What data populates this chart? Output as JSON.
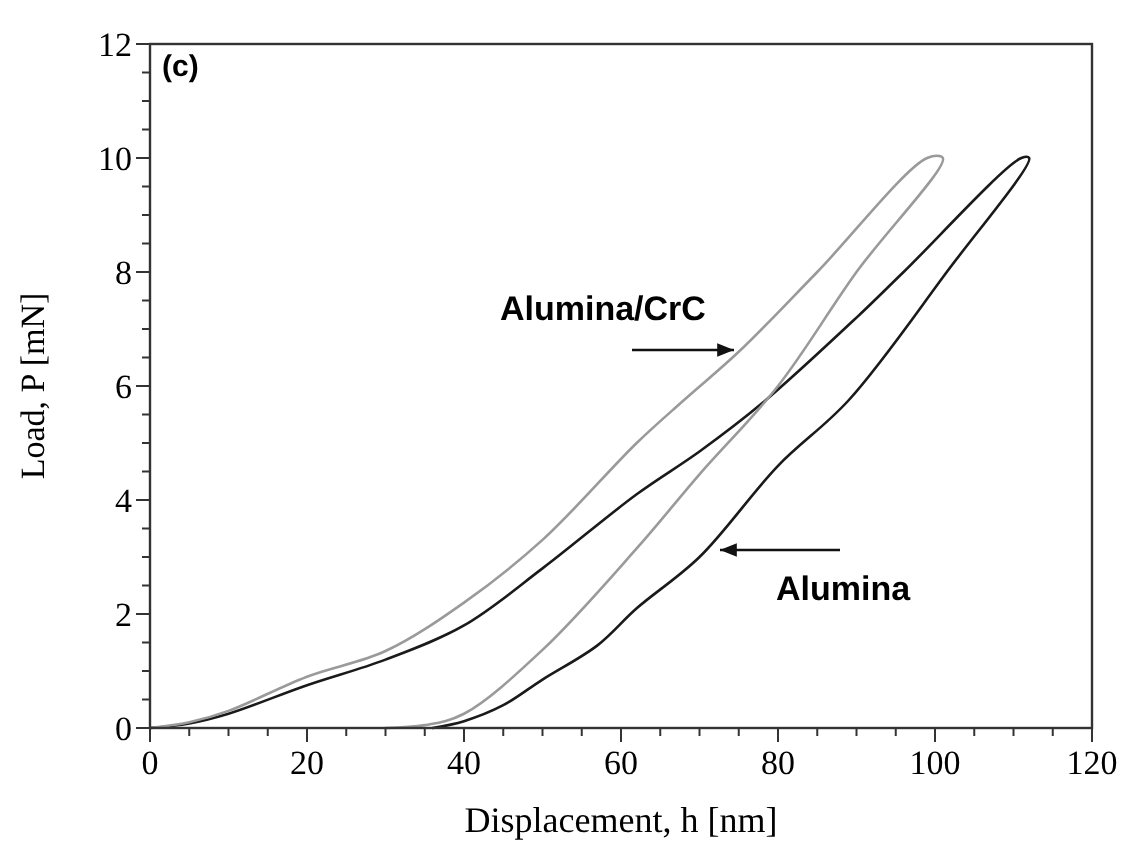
{
  "chart_data": {
    "type": "line",
    "xlabel": "Displacement, h [nm]",
    "ylabel": "Load, P [mN]",
    "xlim": [
      0,
      120
    ],
    "ylim": [
      0,
      12
    ],
    "xticks": [
      0,
      {
        "value": 5,
        "label": null
      },
      20,
      {
        "value": 10,
        "label": null
      },
      {
        "value": 15,
        "label": null
      },
      {
        "value": 25,
        "label": null
      },
      {
        "value": 30,
        "label": null
      },
      {
        "value": 35,
        "label": null
      },
      40,
      {
        "value": 45,
        "label": null
      },
      {
        "value": 50,
        "label": null
      },
      {
        "value": 55,
        "label": null
      },
      60,
      {
        "value": 65,
        "label": null
      },
      {
        "value": 70,
        "label": null
      },
      {
        "value": 75,
        "label": null
      },
      80,
      {
        "value": 85,
        "label": null
      },
      {
        "value": 90,
        "label": null
      },
      {
        "value": 95,
        "label": null
      },
      100,
      {
        "value": 105,
        "label": null
      },
      {
        "value": 110,
        "label": null
      },
      {
        "value": 115,
        "label": null
      },
      120
    ],
    "yticks": [
      0,
      {
        "value": 0.5,
        "label": null
      },
      {
        "value": 1,
        "label": null
      },
      {
        "value": 1.5,
        "label": null
      },
      2,
      {
        "value": 2.5,
        "label": null
      },
      {
        "value": 3,
        "label": null
      },
      {
        "value": 3.5,
        "label": null
      },
      4,
      {
        "value": 4.5,
        "label": null
      },
      {
        "value": 5,
        "label": null
      },
      {
        "value": 5.5,
        "label": null
      },
      6,
      {
        "value": 6.5,
        "label": null
      },
      {
        "value": 7,
        "label": null
      },
      {
        "value": 7.5,
        "label": null
      },
      8,
      {
        "value": 8.5,
        "label": null
      },
      {
        "value": 9,
        "label": null
      },
      {
        "value": 9.5,
        "label": null
      },
      10,
      {
        "value": 10.5,
        "label": null
      },
      {
        "value": 11,
        "label": null
      },
      {
        "value": 11.5,
        "label": null
      },
      12
    ],
    "grid": false,
    "marker": "none",
    "line_style": "solid",
    "series": [
      {
        "color": "#1a1a1a",
        "x": [
          0,
          5,
          10,
          20,
          30,
          40,
          50,
          62,
          70,
          78,
          90,
          96,
          111,
          112,
          101.5,
          89,
          80,
          70,
          62,
          57,
          50,
          45,
          40,
          36
        ],
        "values": [
          0,
          0.08,
          0.25,
          0.75,
          1.2,
          1.8,
          2.8,
          4.1,
          4.85,
          5.7,
          7.2,
          8,
          10,
          10,
          8,
          5.75,
          4.6,
          3.0,
          2.1,
          1.45,
          0.85,
          0.4,
          0.12,
          0
        ]
      },
      {
        "color": "#9a9a9a",
        "x": [
          0,
          5,
          10,
          20,
          30,
          40,
          50,
          62,
          68,
          75,
          85,
          99,
          101,
          90,
          80,
          70,
          62,
          50,
          40,
          35,
          30
        ],
        "values": [
          0,
          0.1,
          0.3,
          0.9,
          1.35,
          2.2,
          3.3,
          5.0,
          5.75,
          6.6,
          8,
          10,
          10,
          8,
          6.0,
          4.45,
          3.15,
          1.37,
          0.25,
          0.05,
          0
        ]
      }
    ],
    "annotations": [
      "(c)",
      "Alumina/CrC",
      "Alumina"
    ]
  }
}
